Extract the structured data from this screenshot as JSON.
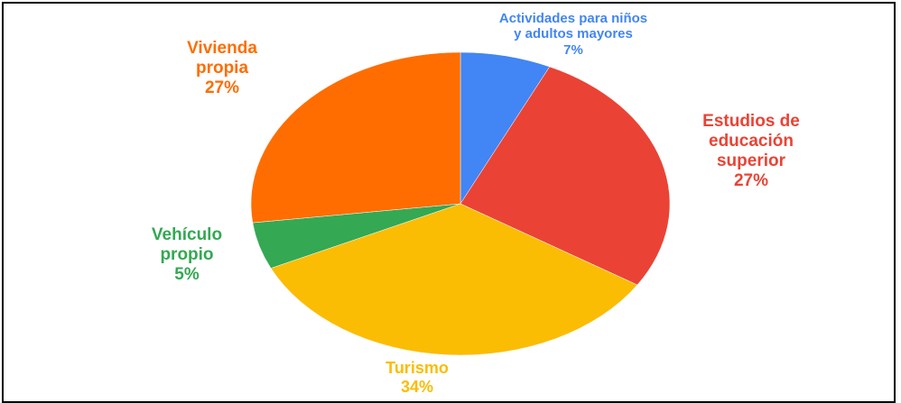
{
  "chart_data": {
    "type": "pie",
    "categories": [
      "Actividades para niños y adultos mayores",
      "Estudios de educación superior",
      "Turismo",
      "Vehículo propio",
      "Vivienda propia"
    ],
    "values": [
      7,
      27,
      34,
      5,
      27
    ],
    "value_labels": [
      "7%",
      "27%",
      "34%",
      "5%",
      "27%"
    ],
    "colors": [
      "#4285f4",
      "#ea4335",
      "#fbbc04",
      "#34a853",
      "#ff6d01"
    ]
  }
}
